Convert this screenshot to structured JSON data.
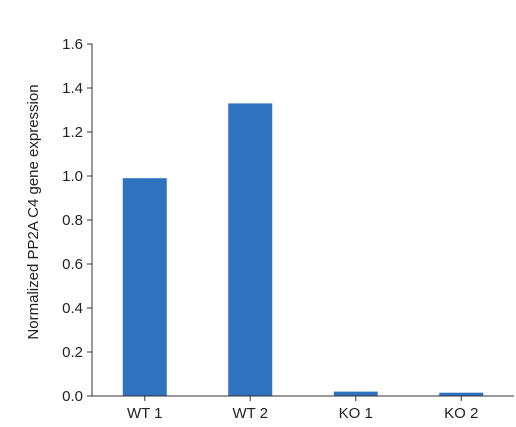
{
  "chart_data": {
    "type": "bar",
    "categories": [
      "WT 1",
      "WT 2",
      "KO 1",
      "KO 2"
    ],
    "values": [
      0.99,
      1.33,
      0.02,
      0.015
    ],
    "ylabel": "Normalized PP2A C4 gene expression",
    "xlabel": "",
    "ylim": [
      0,
      1.6
    ],
    "yticks": [
      "0.0",
      "0.2",
      "0.4",
      "0.6",
      "0.8",
      "1.0",
      "1.2",
      "1.4",
      "1.6"
    ],
    "grid": false,
    "bar_color": "#2f72c0"
  }
}
